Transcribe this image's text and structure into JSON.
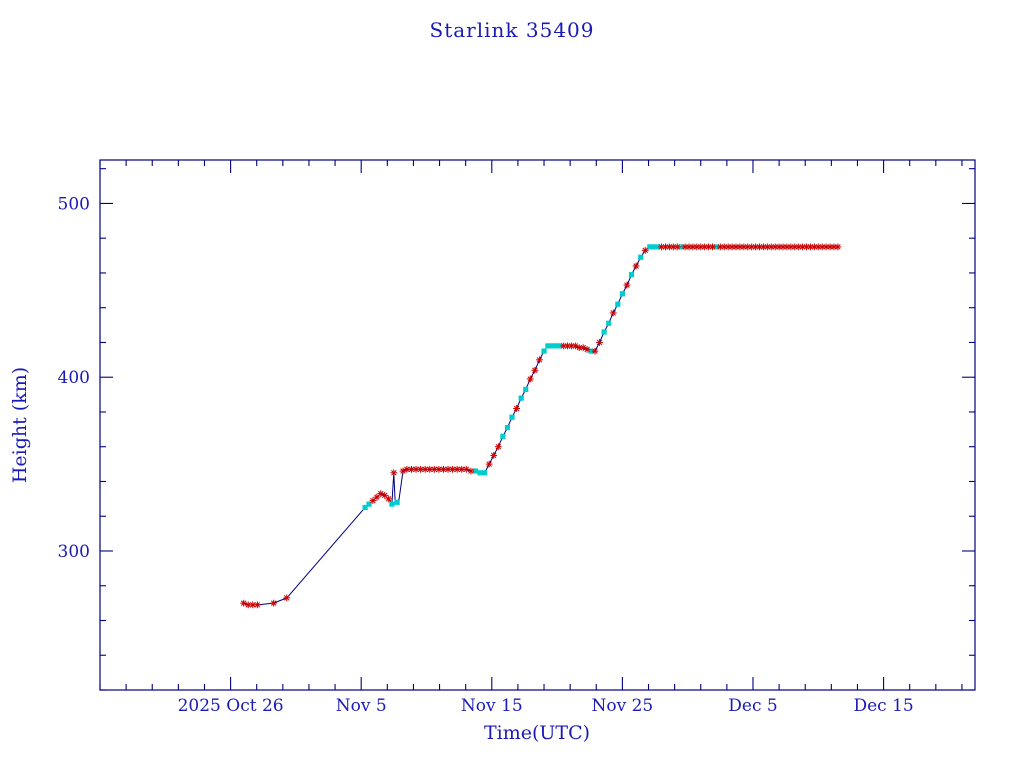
{
  "chart_data": {
    "type": "line",
    "title": "Starlink 35409",
    "xlabel": "Time(UTC)",
    "ylabel": "Height (km)",
    "x_unit": "days since 2025-10-16 00:00 UTC",
    "xlim": [
      0,
      67
    ],
    "ylim": [
      220,
      525
    ],
    "x_minor_step": 2,
    "y_minor_step": 20,
    "x_ticks": [
      {
        "t": 10,
        "label": "2025 Oct 26"
      },
      {
        "t": 20,
        "label": "Nov 5"
      },
      {
        "t": 30,
        "label": "Nov 15"
      },
      {
        "t": 40,
        "label": "Nov 25"
      },
      {
        "t": 50,
        "label": "Dec 5"
      },
      {
        "t": 60,
        "label": "Dec 15"
      }
    ],
    "y_ticks": [
      {
        "v": 300,
        "label": "300"
      },
      {
        "v": 400,
        "label": "400"
      },
      {
        "v": 500,
        "label": "500"
      }
    ],
    "colors": {
      "line": "#000080",
      "axis": "#000080",
      "text": "#1a1ab8",
      "marker_red": "#cc0000",
      "marker_cyan": "#00cdcd"
    },
    "marker_styles": {
      "r": "red-asterisk",
      "c": "cyan-square",
      "": "none"
    },
    "series": [
      {
        "name": "height",
        "points": [
          [
            11.0,
            270,
            "r"
          ],
          [
            11.35,
            269,
            "r"
          ],
          [
            11.7,
            269,
            "r"
          ],
          [
            12.05,
            269,
            "r"
          ],
          [
            13.3,
            270,
            "r"
          ],
          [
            14.3,
            273,
            "r"
          ],
          [
            20.3,
            325,
            "c"
          ],
          [
            20.6,
            327,
            "c"
          ],
          [
            20.9,
            329,
            "r"
          ],
          [
            21.2,
            331,
            "r"
          ],
          [
            21.5,
            333,
            "r"
          ],
          [
            21.8,
            332,
            "r"
          ],
          [
            22.1,
            330,
            "r"
          ],
          [
            22.35,
            327,
            "c"
          ],
          [
            22.5,
            345,
            "r"
          ],
          [
            22.6,
            329,
            ""
          ],
          [
            22.75,
            328,
            "c"
          ],
          [
            22.9,
            330,
            ""
          ],
          [
            23.2,
            346,
            "r"
          ],
          [
            23.5,
            347,
            "r"
          ],
          [
            23.85,
            347,
            "r"
          ],
          [
            24.2,
            347,
            "r"
          ],
          [
            24.55,
            347,
            "r"
          ],
          [
            24.9,
            347,
            "r"
          ],
          [
            25.25,
            347,
            "r"
          ],
          [
            25.6,
            347,
            "r"
          ],
          [
            25.95,
            347,
            "r"
          ],
          [
            26.3,
            347,
            "r"
          ],
          [
            26.65,
            347,
            "r"
          ],
          [
            27.0,
            347,
            "r"
          ],
          [
            27.35,
            347,
            "r"
          ],
          [
            27.7,
            347,
            "r"
          ],
          [
            28.05,
            347,
            "r"
          ],
          [
            28.4,
            346,
            "r"
          ],
          [
            28.75,
            346,
            "c"
          ],
          [
            29.1,
            345,
            "c"
          ],
          [
            29.45,
            345,
            "c"
          ],
          [
            29.8,
            350,
            "r"
          ],
          [
            30.15,
            355,
            "r"
          ],
          [
            30.5,
            360,
            "r"
          ],
          [
            30.85,
            366,
            "c"
          ],
          [
            31.2,
            371,
            "c"
          ],
          [
            31.55,
            377,
            "c"
          ],
          [
            31.9,
            382,
            "r"
          ],
          [
            32.25,
            388,
            "c"
          ],
          [
            32.6,
            393,
            "c"
          ],
          [
            32.95,
            399,
            "r"
          ],
          [
            33.3,
            404,
            "r"
          ],
          [
            33.65,
            410,
            "r"
          ],
          [
            34.0,
            415,
            "c"
          ],
          [
            34.3,
            418,
            "c"
          ],
          [
            34.6,
            418,
            "c"
          ],
          [
            34.9,
            418,
            "c"
          ],
          [
            35.2,
            418,
            "c"
          ],
          [
            35.5,
            418,
            "r"
          ],
          [
            35.8,
            418,
            "r"
          ],
          [
            36.1,
            418,
            "r"
          ],
          [
            36.4,
            418,
            "r"
          ],
          [
            36.7,
            417,
            "r"
          ],
          [
            37.0,
            417,
            "r"
          ],
          [
            37.3,
            416,
            "r"
          ],
          [
            37.6,
            415,
            "c"
          ],
          [
            37.9,
            415,
            "r"
          ],
          [
            38.25,
            420,
            "r"
          ],
          [
            38.6,
            426,
            "c"
          ],
          [
            38.95,
            431,
            "c"
          ],
          [
            39.3,
            437,
            "r"
          ],
          [
            39.65,
            442,
            "c"
          ],
          [
            40.0,
            448,
            "c"
          ],
          [
            40.35,
            453,
            "r"
          ],
          [
            40.7,
            459,
            "c"
          ],
          [
            41.05,
            464,
            "r"
          ],
          [
            41.4,
            469,
            "c"
          ],
          [
            41.75,
            473,
            "r"
          ],
          [
            42.1,
            475,
            "c"
          ],
          [
            42.4,
            475,
            "c"
          ],
          [
            42.7,
            475,
            "c"
          ],
          [
            43.0,
            475,
            "r"
          ],
          [
            43.3,
            475,
            "r"
          ],
          [
            43.6,
            475,
            "r"
          ],
          [
            43.9,
            475,
            "r"
          ],
          [
            44.2,
            475,
            "r"
          ],
          [
            44.5,
            475,
            "c"
          ],
          [
            44.8,
            475,
            "r"
          ],
          [
            45.1,
            475,
            "r"
          ],
          [
            45.4,
            475,
            "r"
          ],
          [
            45.7,
            475,
            "r"
          ],
          [
            46.0,
            475,
            "r"
          ],
          [
            46.3,
            475,
            "r"
          ],
          [
            46.6,
            475,
            "r"
          ],
          [
            46.9,
            475,
            "r"
          ],
          [
            47.2,
            475,
            "c"
          ],
          [
            47.5,
            475,
            "r"
          ],
          [
            47.8,
            475,
            "r"
          ],
          [
            48.1,
            475,
            "r"
          ],
          [
            48.4,
            475,
            "r"
          ],
          [
            48.7,
            475,
            "r"
          ],
          [
            49.0,
            475,
            "r"
          ],
          [
            49.3,
            475,
            "r"
          ],
          [
            49.6,
            475,
            "r"
          ],
          [
            49.9,
            475,
            "r"
          ],
          [
            50.2,
            475,
            "r"
          ],
          [
            50.5,
            475,
            "r"
          ],
          [
            50.8,
            475,
            "r"
          ],
          [
            51.1,
            475,
            "r"
          ],
          [
            51.4,
            475,
            "r"
          ],
          [
            51.7,
            475,
            "r"
          ],
          [
            52.0,
            475,
            "r"
          ],
          [
            52.3,
            475,
            "r"
          ],
          [
            52.6,
            475,
            "r"
          ],
          [
            52.9,
            475,
            "r"
          ],
          [
            53.2,
            475,
            "r"
          ],
          [
            53.5,
            475,
            "r"
          ],
          [
            53.8,
            475,
            "r"
          ],
          [
            54.1,
            475,
            "r"
          ],
          [
            54.4,
            475,
            "r"
          ],
          [
            54.7,
            475,
            "r"
          ],
          [
            55.0,
            475,
            "r"
          ],
          [
            55.3,
            475,
            "r"
          ],
          [
            55.6,
            475,
            "r"
          ],
          [
            55.9,
            475,
            "r"
          ],
          [
            56.2,
            475,
            "r"
          ],
          [
            56.5,
            475,
            "r"
          ]
        ]
      }
    ]
  }
}
